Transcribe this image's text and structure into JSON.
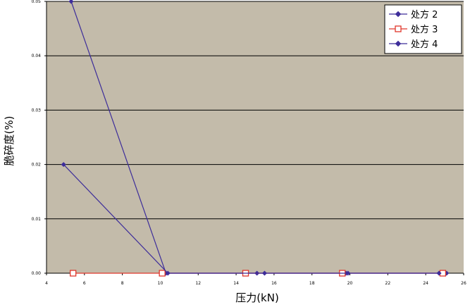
{
  "chart_data": {
    "type": "line",
    "xlabel": "压力(kN)",
    "ylabel": "脆碎度(%)",
    "xlim": [
      4,
      26
    ],
    "ylim": [
      0,
      0.05
    ],
    "x_ticks": [
      "4",
      "6",
      "8",
      "10",
      "12",
      "14",
      "16",
      "18",
      "20",
      "22",
      "24",
      "26"
    ],
    "y_ticks": [
      "0.00",
      "0.01",
      "0.02",
      "0.03",
      "0.04",
      "0.05"
    ],
    "grid": "horizontal",
    "plot_background": "#c3bbaa",
    "legend_position": "top-right",
    "series": [
      {
        "name": "处方 2",
        "color": "#3d2d9a",
        "marker": "diamond",
        "x": [
          5.3,
          10.3,
          15.1,
          19.8,
          25.1
        ],
        "y": [
          0.05,
          0.0,
          0.0,
          0.0,
          0.0
        ]
      },
      {
        "name": "处方 3",
        "color": "#e0362b",
        "marker": "square",
        "x": [
          5.4,
          10.1,
          14.5,
          19.6,
          24.9
        ],
        "y": [
          0.0,
          0.0,
          0.0,
          0.0,
          0.0
        ]
      },
      {
        "name": "处方 4",
        "color": "#3d2d9a",
        "marker": "diamond",
        "x": [
          4.9,
          10.4,
          15.5,
          19.9,
          24.7
        ],
        "y": [
          0.02,
          0.0,
          0.0,
          0.0,
          0.0
        ]
      }
    ]
  }
}
